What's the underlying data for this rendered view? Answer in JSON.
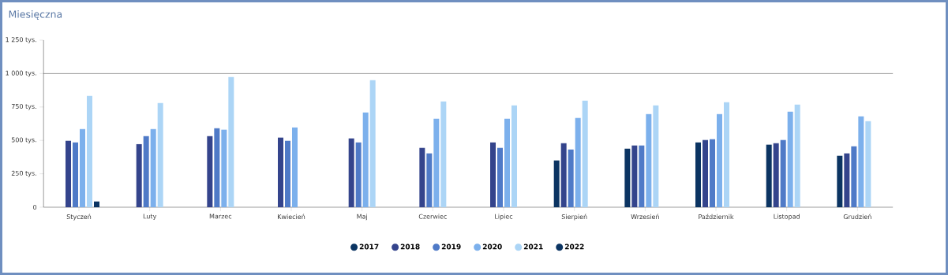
{
  "chart_data": {
    "type": "bar",
    "title": "Miesięczna",
    "categories": [
      "Styczeń",
      "Luty",
      "Marzec",
      "Kwiecień",
      "Maj",
      "Czerwiec",
      "Lipiec",
      "Sierpień",
      "Wrzesień",
      "Październik",
      "Listopad",
      "Grudzień"
    ],
    "series": [
      {
        "name": "2017",
        "color": "#0b3462",
        "values": [
          null,
          null,
          null,
          null,
          null,
          null,
          null,
          350,
          438,
          485,
          468,
          385
        ]
      },
      {
        "name": "2018",
        "color": "#34448c",
        "values": [
          497,
          472,
          532,
          521,
          515,
          444,
          485,
          479,
          462,
          503,
          479,
          403
        ]
      },
      {
        "name": "2019",
        "color": "#4f7ac7",
        "values": [
          485,
          532,
          591,
          497,
          485,
          403,
          444,
          432,
          462,
          509,
          503,
          456
        ]
      },
      {
        "name": "2020",
        "color": "#7cb0ec",
        "values": [
          585,
          585,
          580,
          597,
          709,
          662,
          662,
          668,
          697,
          697,
          715,
          680
        ]
      },
      {
        "name": "2021",
        "color": "#acd5f6",
        "values": [
          833,
          780,
          975,
          null,
          951,
          792,
          762,
          798,
          762,
          786,
          768,
          644
        ]
      },
      {
        "name": "2022",
        "color": "#0b3462",
        "values": [
          43,
          null,
          null,
          null,
          null,
          null,
          null,
          null,
          null,
          null,
          null,
          null
        ]
      }
    ],
    "ylim": [
      0,
      1250
    ],
    "yticks": [
      {
        "value": 0,
        "label": "0"
      },
      {
        "value": 250,
        "label": "250 tys."
      },
      {
        "value": 500,
        "label": "500 tys."
      },
      {
        "value": 750,
        "label": "750 tys."
      },
      {
        "value": 1000,
        "label": "1 000 tys."
      },
      {
        "value": 1250,
        "label": "1 250 tys."
      }
    ],
    "ref_lines": [
      {
        "axis": "y",
        "value": 1000,
        "color": "#000000"
      }
    ],
    "legend": "bottom"
  }
}
